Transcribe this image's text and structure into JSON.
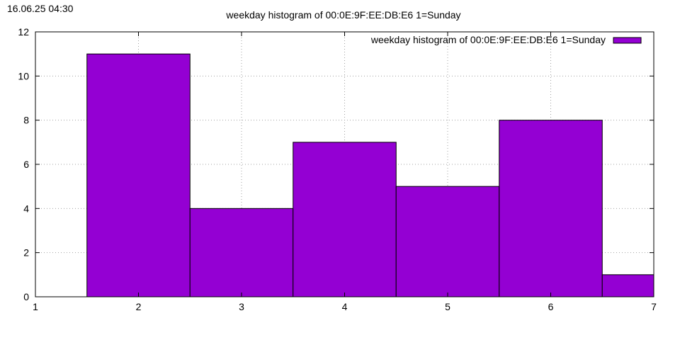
{
  "timestamp": "16.06.25 04:30",
  "chart_data": {
    "type": "bar",
    "title": "weekday histogram of 00:0E:9F:EE:DB:E6 1=Sunday",
    "xlabel": "",
    "ylabel": "",
    "xlim": [
      1,
      7
    ],
    "ylim": [
      0,
      12
    ],
    "x_ticks": [
      1,
      2,
      3,
      4,
      5,
      6,
      7
    ],
    "y_ticks": [
      0,
      2,
      4,
      6,
      8,
      10,
      12
    ],
    "grid": true,
    "legend": {
      "position": "top-right",
      "entries": [
        "weekday histogram of 00:0E:9F:EE:DB:E6 1=Sunday"
      ]
    },
    "series": [
      {
        "name": "weekday histogram of 00:0E:9F:EE:DB:E6 1=Sunday",
        "color": "#9400d3",
        "x": [
          2,
          3,
          4,
          5,
          6,
          7
        ],
        "values": [
          11,
          4,
          7,
          5,
          8,
          1
        ]
      }
    ]
  }
}
